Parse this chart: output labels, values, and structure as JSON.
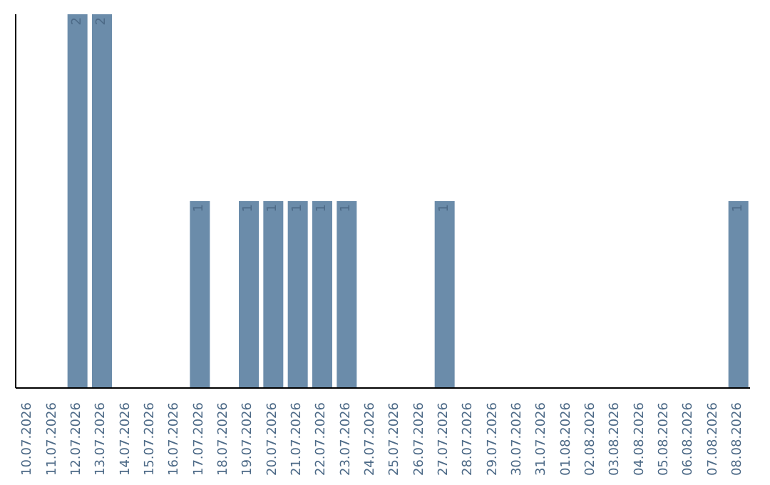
{
  "chart_data": {
    "type": "bar",
    "categories": [
      "10.07.2026",
      "11.07.2026",
      "12.07.2026",
      "13.07.2026",
      "14.07.2026",
      "15.07.2026",
      "16.07.2026",
      "17.07.2026",
      "18.07.2026",
      "19.07.2026",
      "20.07.2026",
      "21.07.2026",
      "22.07.2026",
      "23.07.2026",
      "24.07.2026",
      "25.07.2026",
      "26.07.2026",
      "27.07.2026",
      "28.07.2026",
      "29.07.2026",
      "30.07.2026",
      "31.07.2026",
      "01.08.2026",
      "02.08.2026",
      "03.08.2026",
      "04.08.2026",
      "05.08.2026",
      "06.08.2026",
      "07.08.2026",
      "08.08.2026"
    ],
    "values": [
      0,
      0,
      2,
      2,
      0,
      0,
      0,
      1,
      0,
      1,
      1,
      1,
      1,
      1,
      0,
      0,
      0,
      1,
      0,
      0,
      0,
      0,
      0,
      0,
      0,
      0,
      0,
      0,
      0,
      1
    ],
    "value_labels": [
      null,
      null,
      "2",
      "2",
      null,
      null,
      null,
      "1",
      null,
      "1",
      "1",
      "1",
      "1",
      "1",
      null,
      null,
      null,
      "1",
      null,
      null,
      null,
      null,
      null,
      null,
      null,
      null,
      null,
      null,
      null,
      "1"
    ],
    "color": "#6b8caa",
    "tick_labels": "x"
  }
}
